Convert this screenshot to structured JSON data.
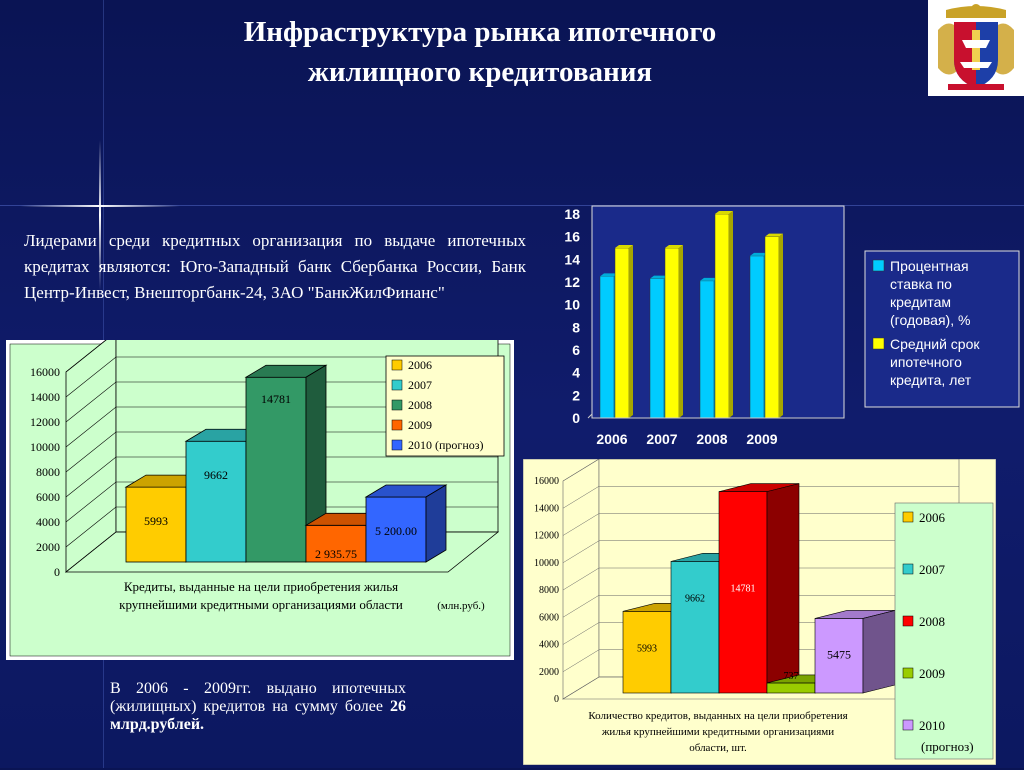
{
  "title_line1": "Инфраструктура рынка ипотечного",
  "title_line2": "жилищного кредитования",
  "lead_text": "Лидерами среди кредитных организация по выдаче ипотечных кредитах являются: Юго-Западный банк Сбербанка России, Банк Центр-Инвест, Внешторгбанк-24, ЗАО \"БанкЖилФинанс\"",
  "bottom_note": {
    "text": "В 2006 - 2009гг. выдано ипотечных (жилищных) кредитов на сумму более ",
    "bold": "26 млрд.рублей."
  },
  "colors": {
    "c2006": "#FFCC00",
    "c2007": "#33CCCC",
    "c2008": "#339966",
    "c2009": "#FF6600",
    "c2010": "#3366FF",
    "rate": "#00CCFF",
    "term": "#FFFF00"
  },
  "chart_data": [
    {
      "type": "bar",
      "categories": [
        "2006",
        "2007",
        "2008",
        "2009",
        "2010 (прогноз)"
      ],
      "values": [
        5993,
        9662,
        14781,
        2935.75,
        5200.0
      ],
      "data_labels": [
        "5993",
        "9662",
        "14781",
        "2 935.75",
        "5 200.00"
      ],
      "xlabel": "Кредиты, выданные на цели приобретения жилья крупнейшими кредитными организациями области",
      "unit": "(млн.руб.)",
      "ylim": [
        0,
        16000
      ],
      "yticks": [
        "0",
        "2000",
        "4000",
        "6000",
        "8000",
        "10000",
        "12000",
        "14000",
        "16000"
      ],
      "legend": "top-right",
      "grid": true
    },
    {
      "type": "bar",
      "categories": [
        "2006",
        "2007",
        "2008",
        "2009"
      ],
      "series": [
        {
          "name": "Процентная ставка по кредитам (годовая), %",
          "values": [
            12.5,
            12.3,
            12.1,
            14.3
          ]
        },
        {
          "name": "Средний срок ипотечного кредита, лет",
          "values": [
            15,
            15,
            18,
            16
          ]
        }
      ],
      "ylim": [
        0,
        18
      ],
      "yticks": [
        "0",
        "2",
        "4",
        "6",
        "8",
        "10",
        "12",
        "14",
        "16",
        "18"
      ],
      "legend": "right",
      "grid": false
    },
    {
      "type": "bar",
      "categories": [
        "2006",
        "2007",
        "2008",
        "2009",
        "2010 (прогноз)"
      ],
      "legend_labels": [
        "2006",
        "2007",
        "2008",
        "2009",
        "2010",
        "(прогноз)"
      ],
      "values": [
        5993,
        9662,
        14781,
        737,
        5475
      ],
      "data_labels": [
        "5993",
        "9662",
        "14781",
        "737",
        "5475"
      ],
      "xlabel": "Количество кредитов, выданных на цели приобретения жилья крупнейшими кредитными организациями области, шт.",
      "ylim": [
        0,
        16000
      ],
      "yticks": [
        "0",
        "2000",
        "4000",
        "6000",
        "8000",
        "10000",
        "12000",
        "14000",
        "16000"
      ],
      "legend": "right",
      "grid": true,
      "colors": [
        "#FFCC00",
        "#33CCCC",
        "#FF0000",
        "#99CC00",
        "#CC99FF"
      ]
    }
  ]
}
